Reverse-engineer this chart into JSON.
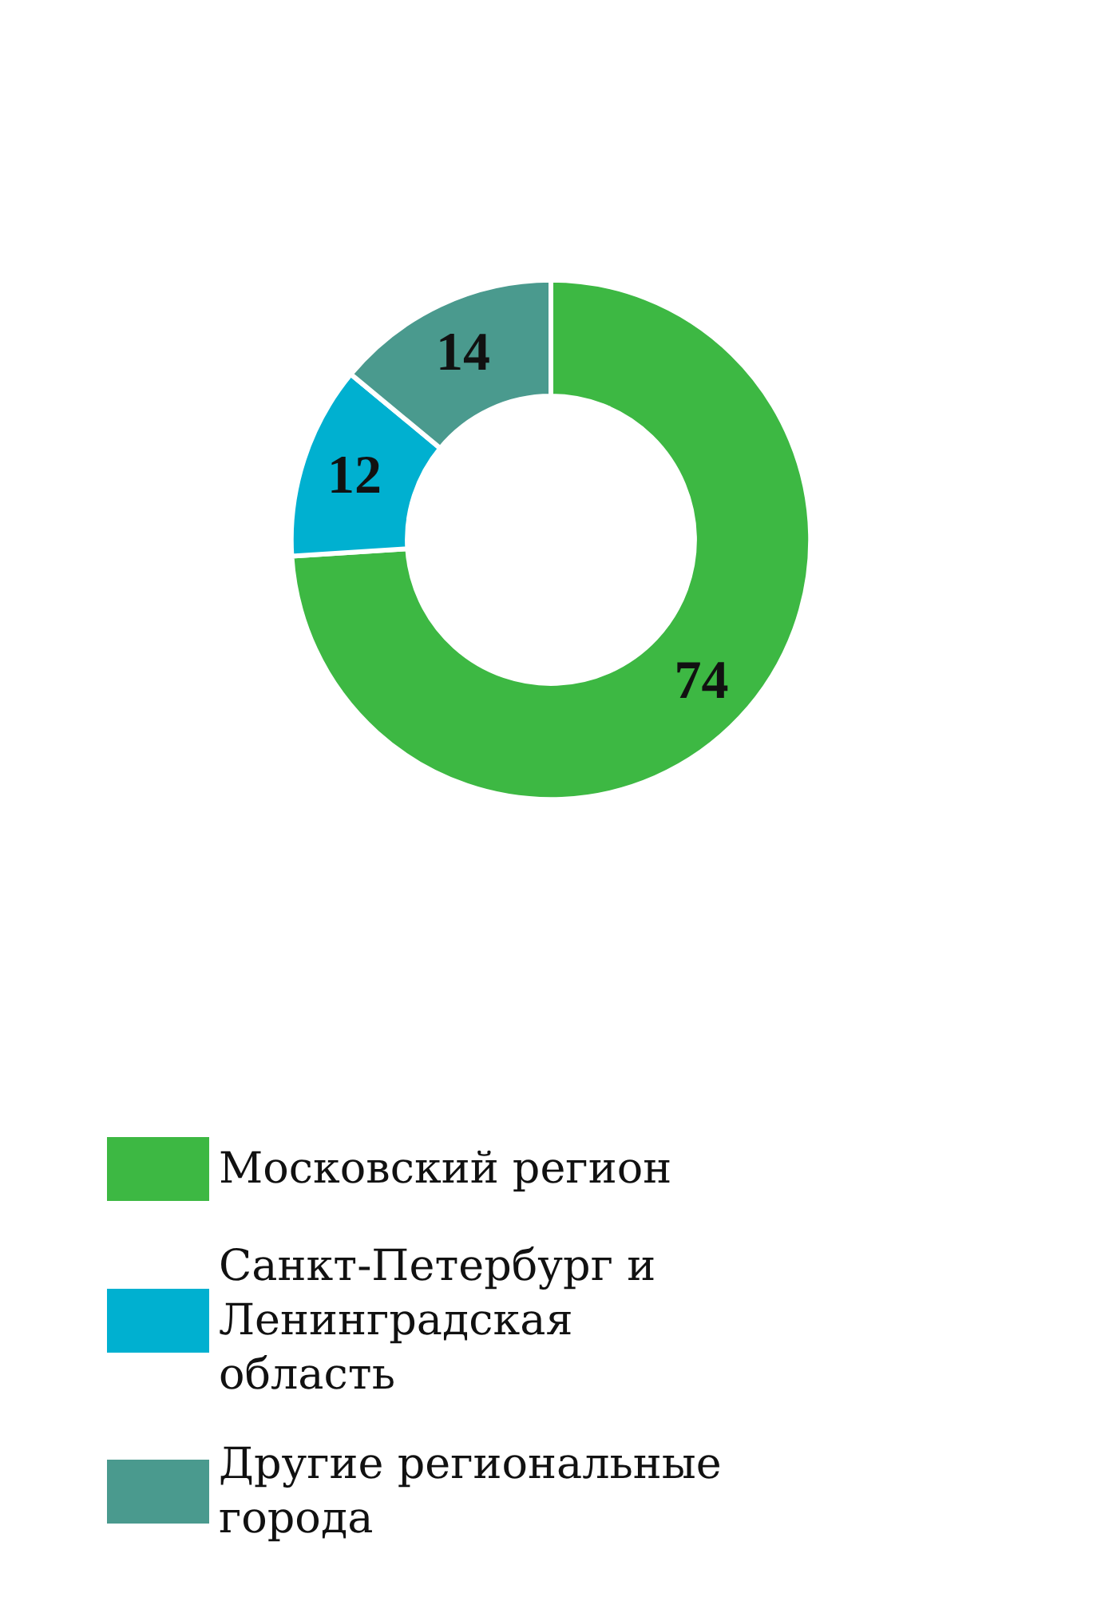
{
  "chart_data": {
    "type": "donut",
    "categories": [
      "Московский регион",
      "Санкт-Петербург и Ленинградская область",
      "Другие региональные города"
    ],
    "values": [
      74,
      12,
      14
    ],
    "colors": [
      "#3db843",
      "#00b0d0",
      "#4a9a8e"
    ],
    "data_labels": true,
    "legend": "bottom"
  }
}
